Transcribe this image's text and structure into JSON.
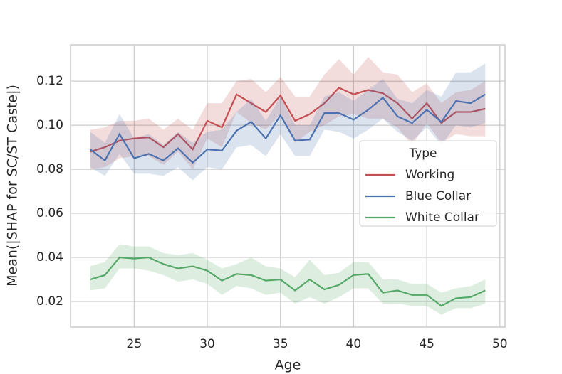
{
  "chart_data": {
    "type": "line",
    "x_label": "Age",
    "y_label": "Mean(|SHAP for SC/ST Caste|)",
    "x": [
      22,
      23,
      24,
      25,
      26,
      27,
      28,
      29,
      30,
      31,
      32,
      33,
      34,
      35,
      36,
      37,
      38,
      39,
      40,
      41,
      42,
      43,
      44,
      45,
      46,
      47,
      48,
      49
    ],
    "series": [
      {
        "name": "Working",
        "color": "#c44e52",
        "values": [
          0.088,
          0.09,
          0.093,
          0.094,
          0.0945,
          0.09,
          0.096,
          0.089,
          0.102,
          0.099,
          0.114,
          0.11,
          0.106,
          0.1135,
          0.102,
          0.105,
          0.11,
          0.117,
          0.114,
          0.116,
          0.1145,
          0.11,
          0.103,
          0.11,
          0.101,
          0.106,
          0.106,
          0.1075
        ],
        "upper": [
          0.098,
          0.099,
          0.102,
          0.102,
          0.103,
          0.098,
          0.103,
          0.098,
          0.11,
          0.11,
          0.12,
          0.121,
          0.115,
          0.122,
          0.113,
          0.113,
          0.123,
          0.13,
          0.123,
          0.131,
          0.124,
          0.123,
          0.115,
          0.119,
          0.11,
          0.115,
          0.116,
          0.12
        ],
        "lower": [
          0.08,
          0.081,
          0.085,
          0.086,
          0.086,
          0.082,
          0.088,
          0.08,
          0.094,
          0.09,
          0.106,
          0.101,
          0.098,
          0.105,
          0.092,
          0.097,
          0.1,
          0.104,
          0.105,
          0.103,
          0.103,
          0.099,
          0.091,
          0.101,
          0.092,
          0.096,
          0.095,
          0.095
        ]
      },
      {
        "name": "Blue Collar",
        "color": "#4c72b0",
        "values": [
          0.089,
          0.084,
          0.096,
          0.085,
          0.087,
          0.084,
          0.0895,
          0.083,
          0.089,
          0.0885,
          0.0975,
          0.1015,
          0.094,
          0.1045,
          0.093,
          0.0935,
          0.1055,
          0.1055,
          0.1025,
          0.107,
          0.1125,
          0.104,
          0.101,
          0.107,
          0.1015,
          0.111,
          0.11,
          0.114
        ],
        "upper": [
          0.097,
          0.092,
          0.105,
          0.094,
          0.096,
          0.091,
          0.097,
          0.092,
          0.097,
          0.098,
          0.106,
          0.112,
          0.102,
          0.113,
          0.1,
          0.1,
          0.113,
          0.115,
          0.111,
          0.116,
          0.121,
          0.112,
          0.11,
          0.116,
          0.113,
          0.124,
          0.124,
          0.128
        ],
        "lower": [
          0.081,
          0.077,
          0.087,
          0.078,
          0.078,
          0.077,
          0.081,
          0.075,
          0.081,
          0.08,
          0.09,
          0.091,
          0.086,
          0.096,
          0.086,
          0.086,
          0.098,
          0.097,
          0.094,
          0.098,
          0.103,
          0.097,
          0.093,
          0.099,
          0.091,
          0.1,
          0.099,
          0.101
        ]
      },
      {
        "name": "White Collar",
        "color": "#55a868",
        "values": [
          0.03,
          0.032,
          0.04,
          0.0395,
          0.04,
          0.037,
          0.035,
          0.036,
          0.034,
          0.0295,
          0.0325,
          0.032,
          0.0295,
          0.03,
          0.025,
          0.03,
          0.0255,
          0.0275,
          0.032,
          0.0325,
          0.024,
          0.025,
          0.023,
          0.023,
          0.018,
          0.0215,
          0.022,
          0.025
        ],
        "upper": [
          0.036,
          0.038,
          0.046,
          0.045,
          0.045,
          0.042,
          0.041,
          0.042,
          0.039,
          0.035,
          0.037,
          0.04,
          0.036,
          0.035,
          0.031,
          0.039,
          0.032,
          0.033,
          0.038,
          0.038,
          0.03,
          0.03,
          0.028,
          0.028,
          0.024,
          0.026,
          0.027,
          0.03
        ],
        "lower": [
          0.025,
          0.026,
          0.035,
          0.035,
          0.034,
          0.032,
          0.029,
          0.03,
          0.028,
          0.023,
          0.027,
          0.026,
          0.023,
          0.024,
          0.019,
          0.022,
          0.019,
          0.022,
          0.026,
          0.026,
          0.019,
          0.019,
          0.018,
          0.018,
          0.014,
          0.017,
          0.017,
          0.019
        ]
      }
    ],
    "legend_title": "Type",
    "legend_position": "center right",
    "xlim": [
      20.65,
      50.35
    ],
    "xticks": [
      25,
      30,
      35,
      40,
      45,
      50
    ],
    "ylim": [
      0.0084,
      0.1365
    ],
    "yticks": [
      {
        "value": 0.02,
        "label": "0.02"
      },
      {
        "value": 0.04,
        "label": "0.04"
      },
      {
        "value": 0.06,
        "label": "0.06"
      },
      {
        "value": 0.08,
        "label": "0.08"
      },
      {
        "value": 0.1,
        "label": "0.10"
      },
      {
        "value": 0.12,
        "label": "0.12"
      }
    ],
    "grid": true
  }
}
